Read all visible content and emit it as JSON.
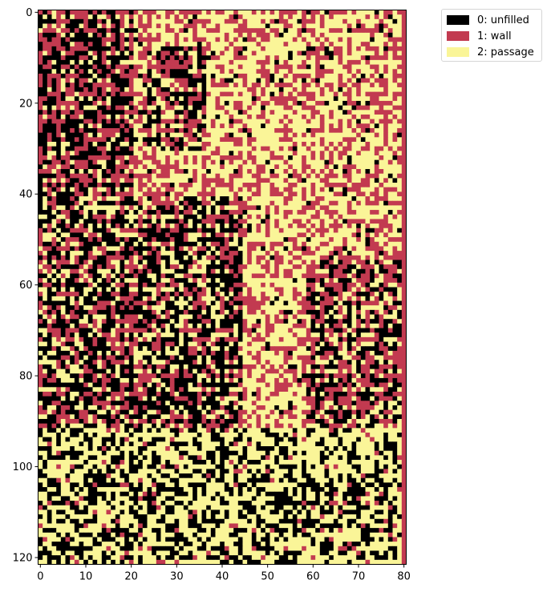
{
  "chart_data": {
    "type": "heatmap",
    "title": "",
    "xlabel": "",
    "ylabel": "",
    "grid": false,
    "columns": 81,
    "rows": 122,
    "xlim": [
      -0.5,
      80.5
    ],
    "ylim": [
      121.5,
      -0.5
    ],
    "x_ticks": [
      0,
      10,
      20,
      30,
      40,
      50,
      60,
      70,
      80
    ],
    "y_ticks": [
      0,
      20,
      40,
      60,
      80,
      100,
      120
    ],
    "legend_position": "outside-top-right",
    "categories": [
      {
        "value": 0,
        "label": "0: unfilled",
        "color": "#000000"
      },
      {
        "value": 1,
        "label": "1: wall",
        "color": "#c23a50"
      },
      {
        "value": 2,
        "label": "2: passage",
        "color": "#faf598"
      }
    ],
    "fill_summary": "generated maze; right column (x=80) is wall; black unfilled region concentrated in the left/bottom half, red walls in the top and right areas, yellow passages throughout"
  }
}
